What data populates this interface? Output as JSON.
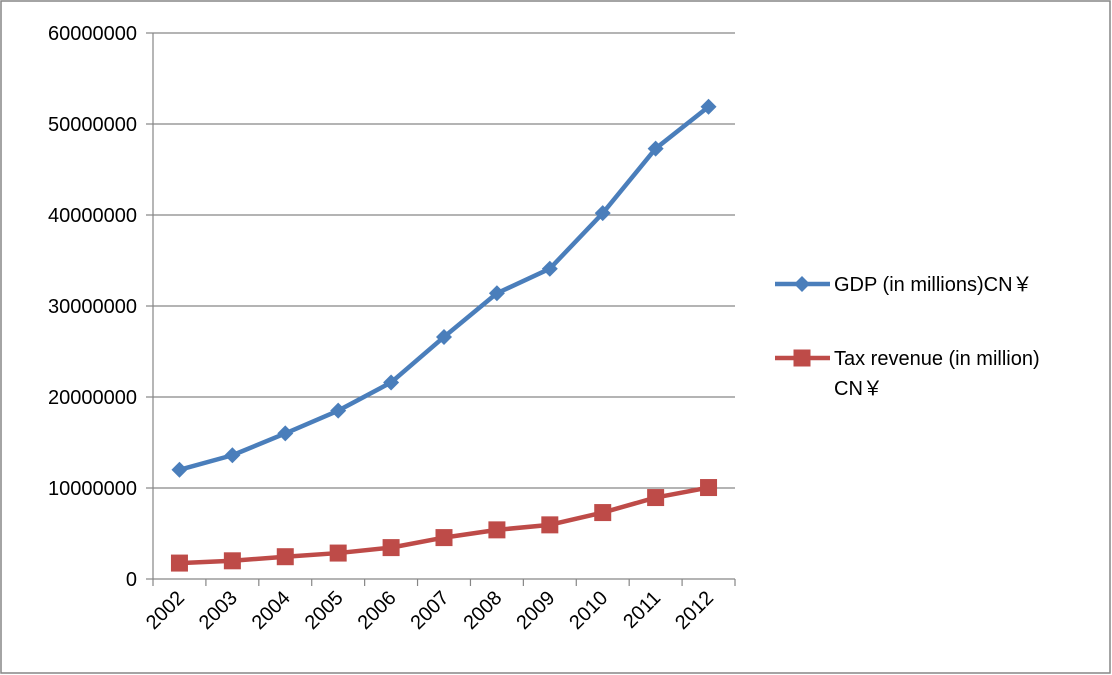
{
  "chart_data": {
    "type": "line",
    "title": "",
    "xlabel": "",
    "ylabel": "",
    "categories": [
      "2002",
      "2003",
      "2004",
      "2005",
      "2006",
      "2007",
      "2008",
      "2009",
      "2010",
      "2011",
      "2012"
    ],
    "ylim": [
      0,
      60000000
    ],
    "yticks": [
      0,
      10000000,
      20000000,
      30000000,
      40000000,
      50000000,
      60000000
    ],
    "ytick_labels": [
      "0",
      "10000000",
      "20000000",
      "30000000",
      "40000000",
      "50000000",
      "60000000"
    ],
    "grid": true,
    "legend_position": "right",
    "series": [
      {
        "name": "GDP (in millions)CN￥",
        "legend_lines": [
          "GDP (in millions)CN￥"
        ],
        "color": "#4A7EBB",
        "marker": "diamond",
        "values": [
          12000000,
          13600000,
          16000000,
          18500000,
          21600000,
          26600000,
          31400000,
          34100000,
          40200000,
          47300000,
          51900000
        ]
      },
      {
        "name": "Tax revenue (in million) CN￥",
        "legend_lines": [
          "Tax revenue (in million)",
          "CN￥"
        ],
        "color": "#BE4B48",
        "marker": "square",
        "values": [
          1750000,
          2000000,
          2450000,
          2850000,
          3450000,
          4550000,
          5400000,
          5950000,
          7300000,
          8950000,
          10050000
        ]
      }
    ]
  }
}
